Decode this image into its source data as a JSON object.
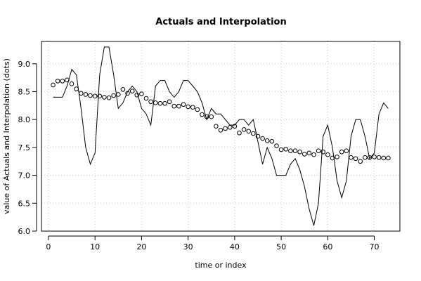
{
  "chart_data": {
    "type": "line",
    "title": "Actuals and Interpolation",
    "xlabel": "time or index",
    "ylabel": "value of Actuals and Interpolation (dots)",
    "xlim": [
      -1.5,
      75.5
    ],
    "ylim": [
      6.0,
      9.4
    ],
    "xticks": [
      0,
      10,
      20,
      30,
      40,
      50,
      60,
      70
    ],
    "yticks": [
      6.0,
      6.5,
      7.0,
      7.5,
      8.0,
      8.5,
      9.0
    ],
    "grid": true,
    "legend": "none",
    "colors": {
      "line": "#000000",
      "points": "#000000",
      "grid": "#c8c8c8"
    },
    "series": [
      {
        "style": "line",
        "x": [
          1,
          2,
          3,
          4,
          5,
          6,
          7,
          8,
          9,
          10,
          11,
          12,
          13,
          14,
          15,
          16,
          17,
          18,
          19,
          20,
          21,
          22,
          23,
          24,
          25,
          26,
          27,
          28,
          29,
          30,
          31,
          32,
          33,
          34,
          35,
          36,
          37,
          38,
          39,
          40,
          41,
          42,
          43,
          44,
          45,
          46,
          47,
          48,
          49,
          50,
          51,
          52,
          53,
          54,
          55,
          56,
          57,
          58,
          59,
          60,
          61,
          62,
          63,
          64,
          65,
          66,
          67,
          68,
          69,
          70,
          71,
          72,
          73
        ],
        "values": [
          8.4,
          8.4,
          8.4,
          8.6,
          8.9,
          8.8,
          8.2,
          7.5,
          7.2,
          7.4,
          8.8,
          9.3,
          9.3,
          8.8,
          8.2,
          8.3,
          8.5,
          8.6,
          8.5,
          8.2,
          8.1,
          7.9,
          8.6,
          8.7,
          8.7,
          8.5,
          8.4,
          8.5,
          8.7,
          8.7,
          8.6,
          8.5,
          8.3,
          8.0,
          8.2,
          8.1,
          8.1,
          8.0,
          7.9,
          7.9,
          8.0,
          8.0,
          7.9,
          8.0,
          7.6,
          7.2,
          7.5,
          7.3,
          7.0,
          7.0,
          7.0,
          7.2,
          7.3,
          7.1,
          6.8,
          6.4,
          6.1,
          6.5,
          7.7,
          7.9,
          7.5,
          6.9,
          6.6,
          6.9,
          7.7,
          8.0,
          8.0,
          7.7,
          7.3,
          7.4,
          8.1,
          8.3,
          8.2
        ]
      },
      {
        "style": "points",
        "x": [
          1,
          2,
          3,
          4,
          5,
          6,
          7,
          8,
          9,
          10,
          11,
          12,
          13,
          14,
          15,
          16,
          17,
          18,
          19,
          20,
          21,
          22,
          23,
          24,
          25,
          26,
          27,
          28,
          29,
          30,
          31,
          32,
          33,
          34,
          35,
          36,
          37,
          38,
          39,
          40,
          41,
          42,
          43,
          44,
          45,
          46,
          47,
          48,
          49,
          50,
          51,
          52,
          53,
          54,
          55,
          56,
          57,
          58,
          59,
          60,
          61,
          62,
          63,
          64,
          65,
          66,
          67,
          68,
          69,
          70,
          71,
          72,
          73
        ],
        "values": [
          8.62,
          8.69,
          8.69,
          8.71,
          8.64,
          8.55,
          8.47,
          8.45,
          8.43,
          8.42,
          8.42,
          8.4,
          8.39,
          8.43,
          8.45,
          8.54,
          8.47,
          8.51,
          8.44,
          8.46,
          8.38,
          8.32,
          8.3,
          8.29,
          8.29,
          8.32,
          8.24,
          8.24,
          8.27,
          8.23,
          8.22,
          8.18,
          8.09,
          8.05,
          8.05,
          7.88,
          7.81,
          7.84,
          7.86,
          7.88,
          7.76,
          7.82,
          7.79,
          7.75,
          7.7,
          7.66,
          7.62,
          7.61,
          7.53,
          7.46,
          7.47,
          7.44,
          7.44,
          7.42,
          7.38,
          7.4,
          7.37,
          7.44,
          7.42,
          7.37,
          7.31,
          7.33,
          7.42,
          7.44,
          7.32,
          7.3,
          7.25,
          7.32,
          7.32,
          7.33,
          7.32,
          7.31,
          7.31
        ]
      }
    ]
  }
}
